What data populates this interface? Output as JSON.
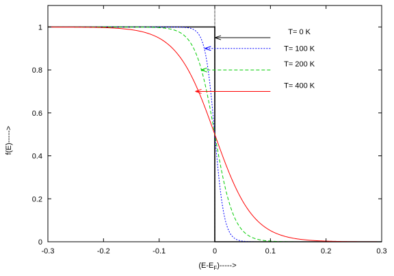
{
  "chart_data": {
    "type": "line",
    "title": "",
    "xlabel": "(E-E",
    "xlabel_sub": "F",
    "xlabel_tail": ")----->",
    "ylabel": "f(E)----->",
    "xlim": [
      -0.3,
      0.3
    ],
    "ylim": [
      0,
      1.1
    ],
    "x_ticks": [
      -0.3,
      -0.2,
      -0.1,
      0,
      0.1,
      0.2,
      0.3
    ],
    "x_tick_labels": [
      "-0.3",
      "-0.2",
      "-0.1",
      "0",
      "0.1",
      "0.2",
      "0.3"
    ],
    "y_ticks": [
      0,
      0.2,
      0.4,
      0.6,
      0.8,
      1
    ],
    "y_tick_labels": [
      "0",
      "0.2",
      "0.4",
      "0.6",
      "0.8",
      "1"
    ],
    "grid": false,
    "legend": "none (series identified by arrows and annotation text on the right)",
    "series": [
      {
        "name": "T= 0 K",
        "temperature_K": 0,
        "color": "#000000",
        "dash": "solid"
      },
      {
        "name": "T= 100 K",
        "temperature_K": 100,
        "color": "#0000ff",
        "dash": "dotted"
      },
      {
        "name": "T= 200 K",
        "temperature_K": 200,
        "color": "#00cc00",
        "dash": "dashed"
      },
      {
        "name": "T= 400 K",
        "temperature_K": 400,
        "color": "#ff0000",
        "dash": "solid"
      }
    ],
    "annotations": [
      {
        "text": "T= 0 K",
        "series": 0,
        "arrow_from": [
          0.1,
          0.95
        ],
        "arrow_to": [
          0.0,
          0.95
        ]
      },
      {
        "text": "T= 100 K",
        "series": 1,
        "arrow_from": [
          0.1,
          0.9
        ],
        "arrow_to": [
          -0.018,
          0.9
        ]
      },
      {
        "text": "T= 200 K",
        "series": 2,
        "arrow_from": [
          0.1,
          0.8
        ],
        "arrow_to": [
          -0.025,
          0.8
        ]
      },
      {
        "text": "T= 400 K",
        "series": 3,
        "arrow_from": [
          0.1,
          0.7
        ],
        "arrow_to": [
          -0.035,
          0.7
        ]
      }
    ],
    "vertical_line_at_x": 0
  }
}
